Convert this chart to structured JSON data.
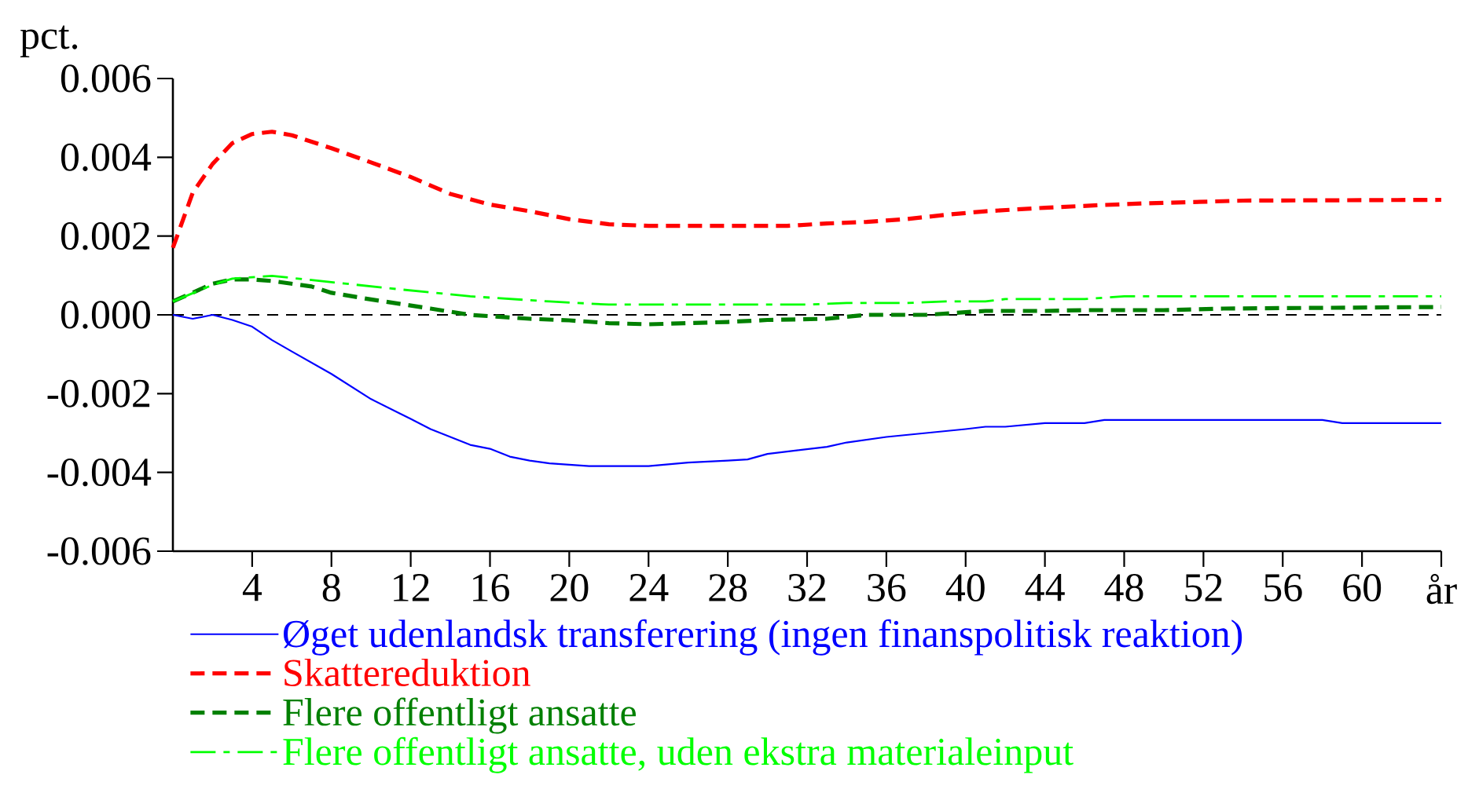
{
  "chart_data": {
    "type": "line",
    "ylabel": "pct.",
    "xlim": [
      0,
      64
    ],
    "xticks": [
      4,
      8,
      12,
      16,
      20,
      24,
      28,
      32,
      36,
      40,
      44,
      48,
      52,
      56,
      60,
      {
        "value": 64,
        "label": "år"
      }
    ],
    "ylim": [
      -0.006,
      0.006
    ],
    "yticks": [
      {
        "value": -0.006,
        "label": "-0.006"
      },
      {
        "value": -0.004,
        "label": "-0.004"
      },
      {
        "value": -0.002,
        "label": "-0.002"
      },
      {
        "value": 0,
        "label": "0.000"
      },
      {
        "value": 0.002,
        "label": "0.002"
      },
      {
        "value": 0.004,
        "label": "0.004"
      },
      {
        "value": 0.006,
        "label": "0.006"
      }
    ],
    "legend": "bottom",
    "marker": "none",
    "ref_lines": [
      {
        "axis": "y",
        "value": 0,
        "color": "#000000",
        "line_style": "dashed"
      }
    ],
    "series": [
      {
        "name": "Øget udenlandsk transferering (ingen finanspolitisk reaktion)",
        "color": "#0000ff",
        "line_style": "solid",
        "x": [
          0,
          1,
          2,
          3,
          4,
          5,
          6,
          8,
          10,
          12,
          13,
          15,
          16,
          17,
          18,
          19,
          21,
          24,
          26,
          28,
          29,
          30,
          31,
          33,
          34,
          36,
          38,
          40,
          41,
          42,
          44,
          46,
          47,
          58,
          59,
          64
        ],
        "values": [
          0,
          -0.0001,
          0,
          -0.00013,
          -0.0003,
          -0.00064,
          -0.00093,
          -0.0015,
          -0.00214,
          -0.00264,
          -0.0029,
          -0.0033,
          -0.0034,
          -0.0036,
          -0.0037,
          -0.00377,
          -0.00384,
          -0.00384,
          -0.00375,
          -0.0037,
          -0.00367,
          -0.00353,
          -0.00347,
          -0.00335,
          -0.00324,
          -0.0031,
          -0.003,
          -0.0029,
          -0.00284,
          -0.00284,
          -0.00275,
          -0.00275,
          -0.00267,
          -0.00267,
          -0.00275,
          -0.00275
        ]
      },
      {
        "name": "Skattereduktion",
        "color": "#ff0000",
        "line_style": "dashed",
        "x": [
          0,
          1,
          2,
          3,
          4,
          5,
          6,
          8,
          10,
          12,
          14,
          16,
          18,
          20,
          22,
          24,
          28,
          31,
          33,
          35,
          37,
          39,
          41,
          44,
          47,
          49,
          54,
          64
        ],
        "values": [
          0.0017,
          0.0031,
          0.00383,
          0.00436,
          0.00459,
          0.00465,
          0.00456,
          0.00423,
          0.00387,
          0.0035,
          0.00307,
          0.0028,
          0.00263,
          0.00243,
          0.0023,
          0.00226,
          0.00226,
          0.00226,
          0.00232,
          0.00236,
          0.00243,
          0.00254,
          0.00263,
          0.00272,
          0.00279,
          0.00283,
          0.0029,
          0.00292
        ]
      },
      {
        "name": "Flere offentligt ansatte",
        "color": "#008000",
        "line_style": "dashed",
        "x": [
          0,
          2,
          3,
          4,
          5,
          7,
          8,
          10,
          13,
          15,
          18,
          20,
          22,
          24,
          28,
          30,
          33,
          35,
          38,
          41,
          44,
          46,
          50,
          53,
          64
        ],
        "values": [
          0.00034,
          0.00079,
          0.0009,
          0.0009,
          0.00086,
          0.00072,
          0.00056,
          0.00039,
          0.00016,
          0,
          -0.0001,
          -0.00014,
          -0.00021,
          -0.00024,
          -0.00018,
          -0.00013,
          -0.0001,
          0,
          0,
          0.0001,
          0.0001,
          0.00012,
          0.00012,
          0.00016,
          0.0002
        ]
      },
      {
        "name": "Flere offentligt ansatte, uden ekstra materialeinput",
        "color": "#00ff00",
        "line_style": "dashdot",
        "x": [
          0,
          2,
          3,
          5,
          8,
          11,
          15,
          19,
          22,
          32,
          34,
          37,
          39,
          41,
          42,
          46,
          48,
          64
        ],
        "values": [
          0.00034,
          0.00076,
          0.00092,
          0.00099,
          0.00083,
          0.00067,
          0.00047,
          0.00034,
          0.00026,
          0.00026,
          0.0003,
          0.0003,
          0.00034,
          0.00034,
          0.0004,
          0.0004,
          0.00047,
          0.00047
        ]
      }
    ]
  }
}
